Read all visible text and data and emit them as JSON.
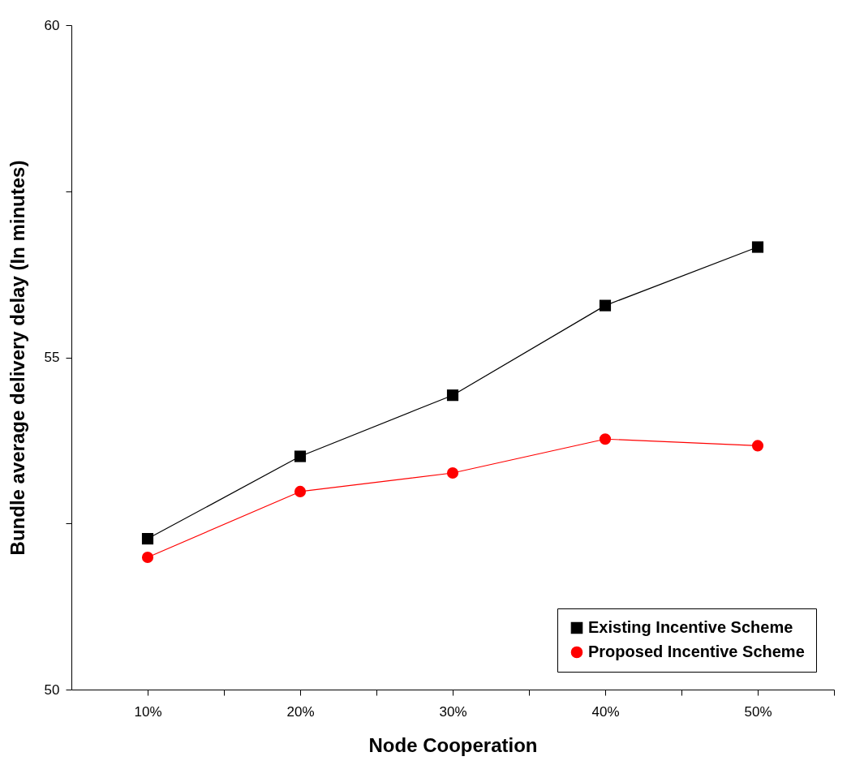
{
  "chart_data": {
    "type": "line",
    "xlabel": "Node Cooperation",
    "ylabel": "Bundle average delivery delay (In minutes)",
    "x": [
      10,
      20,
      30,
      40,
      50
    ],
    "xlim": [
      5,
      55
    ],
    "xticks": [
      {
        "value": 10,
        "label": "10%"
      },
      {
        "value": 15,
        "label": null
      },
      {
        "value": 20,
        "label": "20%"
      },
      {
        "value": 25,
        "label": null
      },
      {
        "value": 30,
        "label": "30%"
      },
      {
        "value": 35,
        "label": null
      },
      {
        "value": 40,
        "label": "40%"
      },
      {
        "value": 45,
        "label": null
      },
      {
        "value": 50,
        "label": "50%"
      },
      {
        "value": 55,
        "label": null
      }
    ],
    "ylim": [
      50,
      60
    ],
    "yticks": [
      50,
      {
        "value": 52.5,
        "label": null
      },
      55,
      {
        "value": 57.5,
        "label": null
      },
      60
    ],
    "series": [
      {
        "name": "Existing Incentive Scheme",
        "color": "#000000",
        "marker": "square",
        "values": [
          52.27,
          53.51,
          54.43,
          55.78,
          56.66
        ]
      },
      {
        "name": "Proposed Incentive Scheme",
        "color": "#ff0000",
        "marker": "circle",
        "values": [
          51.99,
          52.98,
          53.26,
          53.77,
          53.67
        ]
      }
    ],
    "grid": false,
    "legend": "bottom right",
    "line_style": "solid"
  }
}
